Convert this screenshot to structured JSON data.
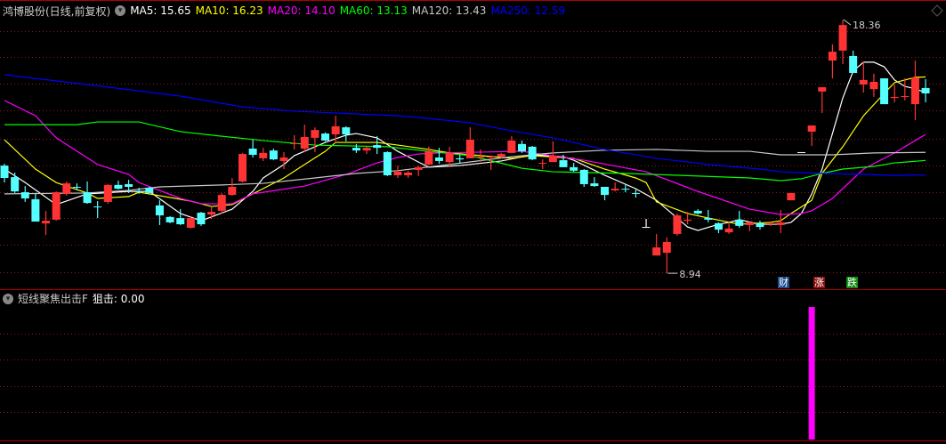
{
  "header": {
    "stock": "鸿博股份(日线,前复权)",
    "ma_labels": [
      {
        "label": "MA5: 15.65",
        "color": "#ffffff"
      },
      {
        "label": "MA10: 16.23",
        "color": "#ffff00"
      },
      {
        "label": "MA20: 14.10",
        "color": "#ff00ff"
      },
      {
        "label": "MA60: 13.13",
        "color": "#00ff00"
      },
      {
        "label": "MA120: 13.43",
        "color": "#c8c8c8"
      },
      {
        "label": "MA250: 12.59",
        "color": "#0000ff"
      }
    ]
  },
  "badges": [
    {
      "label": "财",
      "color": "#1a4a8a"
    },
    {
      "label": "涨",
      "color": "#8a1010"
    },
    {
      "label": "跌",
      "color": "#108a10"
    }
  ],
  "indicator": {
    "name": "短线聚焦出击F",
    "value_label": "狙击: 0.00",
    "bar_color": "#ff00ff"
  },
  "chart_data": {
    "type": "candlestick",
    "up_color": "#ff3333",
    "down_color": "#54ffff",
    "high_label": "18.36",
    "low_label": "8.94",
    "candles_ohlc": [
      [
        12.94,
        13.01,
        12.31,
        12.48
      ],
      [
        12.51,
        12.68,
        11.92,
        11.98
      ],
      [
        11.95,
        12.18,
        11.59,
        11.72
      ],
      [
        11.69,
        11.92,
        10.86,
        10.86
      ],
      [
        10.79,
        11.26,
        10.36,
        10.89
      ],
      [
        10.93,
        11.98,
        10.89,
        11.95
      ],
      [
        11.89,
        12.35,
        11.82,
        12.28
      ],
      [
        12.15,
        12.28,
        12.02,
        12.12
      ],
      [
        11.95,
        12.35,
        11.52,
        11.55
      ],
      [
        11.42,
        11.62,
        10.99,
        11.39
      ],
      [
        11.59,
        12.25,
        11.52,
        12.22
      ],
      [
        12.22,
        12.38,
        12.05,
        12.08
      ],
      [
        12.25,
        12.41,
        11.92,
        12.15
      ],
      [
        11.98,
        12.12,
        11.89,
        11.95
      ],
      [
        12.12,
        12.15,
        11.89,
        11.92
      ],
      [
        11.46,
        11.65,
        10.73,
        11.09
      ],
      [
        11.03,
        11.06,
        10.8,
        10.83
      ],
      [
        10.99,
        11.32,
        10.73,
        10.76
      ],
      [
        10.63,
        11.03,
        10.6,
        10.99
      ],
      [
        11.19,
        11.22,
        10.7,
        10.76
      ],
      [
        11.12,
        11.39,
        10.96,
        11.22
      ],
      [
        11.26,
        11.92,
        11.16,
        11.85
      ],
      [
        11.85,
        12.48,
        11.82,
        12.15
      ],
      [
        12.35,
        13.41,
        12.31,
        13.37
      ],
      [
        13.57,
        13.9,
        13.24,
        13.34
      ],
      [
        13.21,
        13.6,
        13.11,
        13.41
      ],
      [
        13.5,
        13.57,
        13.14,
        13.17
      ],
      [
        13.11,
        13.44,
        12.81,
        13.24
      ],
      [
        13.74,
        14.07,
        13.54,
        13.77
      ],
      [
        13.57,
        14.46,
        13.44,
        14.0
      ],
      [
        13.97,
        14.36,
        13.44,
        14.26
      ],
      [
        14.13,
        14.17,
        13.84,
        13.87
      ],
      [
        14.1,
        14.79,
        13.77,
        14.4
      ],
      [
        14.36,
        14.4,
        13.84,
        14.1
      ],
      [
        13.6,
        13.74,
        13.41,
        13.5
      ],
      [
        13.5,
        13.64,
        13.37,
        13.6
      ],
      [
        13.7,
        14.03,
        13.37,
        13.6
      ],
      [
        13.44,
        13.47,
        12.55,
        12.58
      ],
      [
        12.58,
        12.94,
        12.48,
        12.71
      ],
      [
        12.58,
        12.75,
        12.48,
        12.68
      ],
      [
        12.78,
        12.94,
        12.55,
        12.88
      ],
      [
        12.98,
        13.64,
        12.94,
        13.47
      ],
      [
        13.24,
        13.6,
        13.01,
        13.11
      ],
      [
        13.07,
        13.64,
        12.88,
        13.41
      ],
      [
        13.21,
        13.34,
        13.01,
        13.17
      ],
      [
        13.21,
        14.36,
        13.21,
        13.9
      ],
      [
        13.24,
        13.54,
        13.07,
        13.27
      ],
      [
        13.24,
        13.31,
        12.78,
        13.27
      ],
      [
        13.27,
        13.41,
        13.21,
        13.37
      ],
      [
        13.41,
        14.03,
        13.41,
        13.87
      ],
      [
        13.74,
        13.87,
        13.41,
        13.47
      ],
      [
        13.64,
        13.67,
        13.14,
        13.17
      ],
      [
        13.01,
        13.17,
        12.81,
        13.04
      ],
      [
        13.07,
        13.84,
        13.07,
        13.31
      ],
      [
        13.14,
        13.34,
        12.88,
        12.88
      ],
      [
        12.88,
        13.04,
        12.71,
        12.75
      ],
      [
        12.78,
        12.81,
        12.15,
        12.25
      ],
      [
        12.28,
        12.51,
        12.15,
        12.18
      ],
      [
        12.15,
        12.15,
        11.65,
        11.85
      ],
      [
        12.02,
        12.31,
        11.98,
        12.08
      ],
      [
        12.08,
        12.22,
        11.95,
        12.05
      ],
      [
        11.92,
        12.05,
        11.75,
        11.89
      ],
      [
        10.66,
        10.96,
        10.66,
        10.66
      ],
      [
        9.6,
        10.4,
        9.6,
        9.9
      ],
      [
        9.7,
        10.27,
        8.94,
        10.1
      ],
      [
        10.4,
        11.16,
        10.33,
        11.09
      ],
      [
        10.89,
        11.22,
        10.76,
        10.93
      ],
      [
        11.26,
        11.32,
        11.12,
        11.16
      ],
      [
        10.99,
        11.29,
        10.83,
        10.93
      ],
      [
        10.8,
        10.83,
        10.43,
        10.56
      ],
      [
        10.46,
        10.83,
        10.4,
        10.6
      ],
      [
        10.93,
        11.26,
        10.63,
        10.7
      ],
      [
        10.73,
        10.86,
        10.5,
        10.83
      ],
      [
        10.8,
        10.89,
        10.56,
        10.66
      ],
      [
        10.76,
        10.83,
        10.7,
        10.8
      ],
      [
        10.73,
        11.29,
        10.43,
        10.83
      ],
      [
        11.65,
        11.92,
        11.65,
        11.92
      ],
      [
        13.44,
        13.44,
        13.44,
        13.44
      ],
      [
        14.2,
        14.43,
        13.67,
        14.43
      ],
      [
        15.69,
        15.85,
        14.89,
        15.85
      ],
      [
        16.84,
        17.44,
        16.18,
        17.17
      ],
      [
        17.21,
        18.36,
        16.71,
        18.16
      ],
      [
        17.01,
        17.21,
        16.38,
        16.38
      ],
      [
        15.95,
        16.81,
        15.65,
        16.12
      ],
      [
        15.78,
        16.35,
        15.49,
        16.05
      ],
      [
        16.18,
        16.18,
        15.22,
        15.22
      ],
      [
        15.45,
        15.95,
        15.29,
        15.49
      ],
      [
        15.49,
        16.18,
        15.36,
        15.52
      ],
      [
        15.22,
        16.84,
        14.63,
        16.21
      ],
      [
        15.82,
        16.15,
        15.29,
        15.62
      ]
    ],
    "moving_averages": [
      {
        "name": "MA5",
        "color": "#ffffff",
        "points": [
          [
            0,
            12.81
          ],
          [
            2,
            12.31
          ],
          [
            5,
            11.49
          ],
          [
            8,
            11.89
          ],
          [
            12,
            11.98
          ],
          [
            14,
            11.98
          ],
          [
            17,
            11.16
          ],
          [
            19,
            10.89
          ],
          [
            22,
            11.32
          ],
          [
            24,
            11.98
          ],
          [
            25,
            12.48
          ],
          [
            27,
            12.98
          ],
          [
            28,
            13.31
          ],
          [
            31,
            13.8
          ],
          [
            33,
            14.07
          ],
          [
            34,
            14.13
          ],
          [
            36,
            13.97
          ],
          [
            38,
            13.47
          ],
          [
            40,
            13.07
          ],
          [
            41,
            12.88
          ],
          [
            44,
            12.94
          ],
          [
            48,
            13.11
          ],
          [
            51,
            13.34
          ],
          [
            54,
            13.27
          ],
          [
            55,
            13.14
          ],
          [
            58,
            12.58
          ],
          [
            61,
            12.08
          ],
          [
            63,
            11.65
          ],
          [
            65,
            10.99
          ],
          [
            66,
            10.66
          ],
          [
            67,
            10.53
          ],
          [
            69,
            10.76
          ],
          [
            70,
            10.83
          ],
          [
            71,
            10.93
          ],
          [
            73,
            10.76
          ],
          [
            75,
            10.76
          ],
          [
            76,
            10.83
          ],
          [
            77,
            11.16
          ],
          [
            78,
            11.89
          ],
          [
            79,
            12.81
          ],
          [
            80,
            14.13
          ],
          [
            81,
            15.45
          ],
          [
            82,
            16.45
          ],
          [
            83,
            16.78
          ],
          [
            84,
            16.78
          ],
          [
            85,
            16.61
          ],
          [
            86,
            16.12
          ],
          [
            87,
            15.88
          ],
          [
            88,
            15.79
          ],
          [
            89,
            15.65
          ]
        ]
      },
      {
        "name": "MA10",
        "color": "#ffff00",
        "points": [
          [
            0,
            13.9
          ],
          [
            3,
            12.81
          ],
          [
            5,
            12.31
          ],
          [
            7,
            12.05
          ],
          [
            8,
            11.92
          ],
          [
            9,
            11.72
          ],
          [
            12,
            11.79
          ],
          [
            13,
            11.95
          ],
          [
            15,
            11.82
          ],
          [
            18,
            11.62
          ],
          [
            20,
            11.42
          ],
          [
            22,
            11.49
          ],
          [
            24,
            11.89
          ],
          [
            27,
            12.48
          ],
          [
            29,
            12.98
          ],
          [
            31,
            13.47
          ],
          [
            32,
            13.8
          ],
          [
            36,
            13.8
          ],
          [
            38,
            13.7
          ],
          [
            41,
            13.54
          ],
          [
            43,
            13.41
          ],
          [
            46,
            13.31
          ],
          [
            49,
            13.21
          ],
          [
            51,
            13.31
          ],
          [
            55,
            13.21
          ],
          [
            58,
            12.81
          ],
          [
            61,
            12.48
          ],
          [
            62,
            12.31
          ],
          [
            63,
            11.59
          ],
          [
            66,
            11.16
          ],
          [
            68,
            10.99
          ],
          [
            71,
            10.76
          ],
          [
            74,
            10.83
          ],
          [
            75,
            10.89
          ],
          [
            76,
            11.16
          ],
          [
            78,
            11.65
          ],
          [
            79,
            12.65
          ],
          [
            81,
            13.64
          ],
          [
            83,
            14.79
          ],
          [
            85,
            15.62
          ],
          [
            86,
            16.02
          ],
          [
            88,
            16.22
          ],
          [
            89,
            16.23
          ]
        ]
      },
      {
        "name": "MA20",
        "color": "#ff00ff",
        "points": [
          [
            0,
            15.36
          ],
          [
            3,
            14.79
          ],
          [
            5,
            13.97
          ],
          [
            9,
            12.98
          ],
          [
            12,
            12.61
          ],
          [
            13,
            12.31
          ],
          [
            17,
            11.72
          ],
          [
            19,
            11.52
          ],
          [
            22,
            11.52
          ],
          [
            24,
            11.89
          ],
          [
            29,
            12.18
          ],
          [
            33,
            12.61
          ],
          [
            36,
            13.04
          ],
          [
            38,
            13.24
          ],
          [
            40,
            13.37
          ],
          [
            42,
            13.41
          ],
          [
            50,
            13.47
          ],
          [
            56,
            13.14
          ],
          [
            62,
            12.71
          ],
          [
            67,
            11.98
          ],
          [
            72,
            11.32
          ],
          [
            75,
            11.12
          ],
          [
            77,
            11.16
          ],
          [
            78,
            11.26
          ],
          [
            80,
            11.72
          ],
          [
            83,
            12.81
          ],
          [
            86,
            13.41
          ],
          [
            89,
            14.1
          ]
        ]
      },
      {
        "name": "MA60",
        "color": "#00ff00",
        "points": [
          [
            0,
            14.46
          ],
          [
            7,
            14.46
          ],
          [
            9,
            14.56
          ],
          [
            13,
            14.56
          ],
          [
            17,
            14.2
          ],
          [
            21,
            14.03
          ],
          [
            25,
            13.87
          ],
          [
            30,
            13.7
          ],
          [
            37,
            13.64
          ],
          [
            41,
            13.47
          ],
          [
            45,
            13.31
          ],
          [
            50,
            12.84
          ],
          [
            53,
            12.71
          ],
          [
            60,
            12.65
          ],
          [
            65,
            12.58
          ],
          [
            72,
            12.48
          ],
          [
            75,
            12.38
          ],
          [
            77,
            12.45
          ],
          [
            79,
            12.65
          ],
          [
            81,
            12.81
          ],
          [
            84,
            12.91
          ],
          [
            86,
            13.04
          ],
          [
            89,
            13.13
          ]
        ]
      },
      {
        "name": "MA120",
        "color": "#c8c8c8",
        "points": [
          [
            0,
            11.89
          ],
          [
            8,
            11.92
          ],
          [
            12,
            12.02
          ],
          [
            15,
            12.15
          ],
          [
            21,
            12.22
          ],
          [
            25,
            12.28
          ],
          [
            30,
            12.48
          ],
          [
            34,
            12.65
          ],
          [
            38,
            12.75
          ],
          [
            43,
            12.98
          ],
          [
            49,
            13.27
          ],
          [
            53,
            13.41
          ],
          [
            58,
            13.51
          ],
          [
            63,
            13.54
          ],
          [
            68,
            13.47
          ],
          [
            72,
            13.47
          ],
          [
            75,
            13.34
          ],
          [
            80,
            13.34
          ],
          [
            84,
            13.41
          ],
          [
            89,
            13.43
          ]
        ]
      },
      {
        "name": "MA250",
        "color": "#0000ff",
        "points": [
          [
            0,
            16.31
          ],
          [
            8,
            15.95
          ],
          [
            17,
            15.52
          ],
          [
            23,
            15.12
          ],
          [
            28,
            14.96
          ],
          [
            34,
            14.86
          ],
          [
            38,
            14.79
          ],
          [
            41,
            14.69
          ],
          [
            45,
            14.53
          ],
          [
            49,
            14.23
          ],
          [
            53,
            13.97
          ],
          [
            58,
            13.54
          ],
          [
            63,
            13.21
          ],
          [
            68,
            12.98
          ],
          [
            73,
            12.81
          ],
          [
            75,
            12.71
          ],
          [
            79,
            12.65
          ],
          [
            86,
            12.58
          ],
          [
            89,
            12.59
          ]
        ]
      }
    ],
    "indicator_bars": [
      {
        "index": 78,
        "value": 1
      }
    ]
  }
}
